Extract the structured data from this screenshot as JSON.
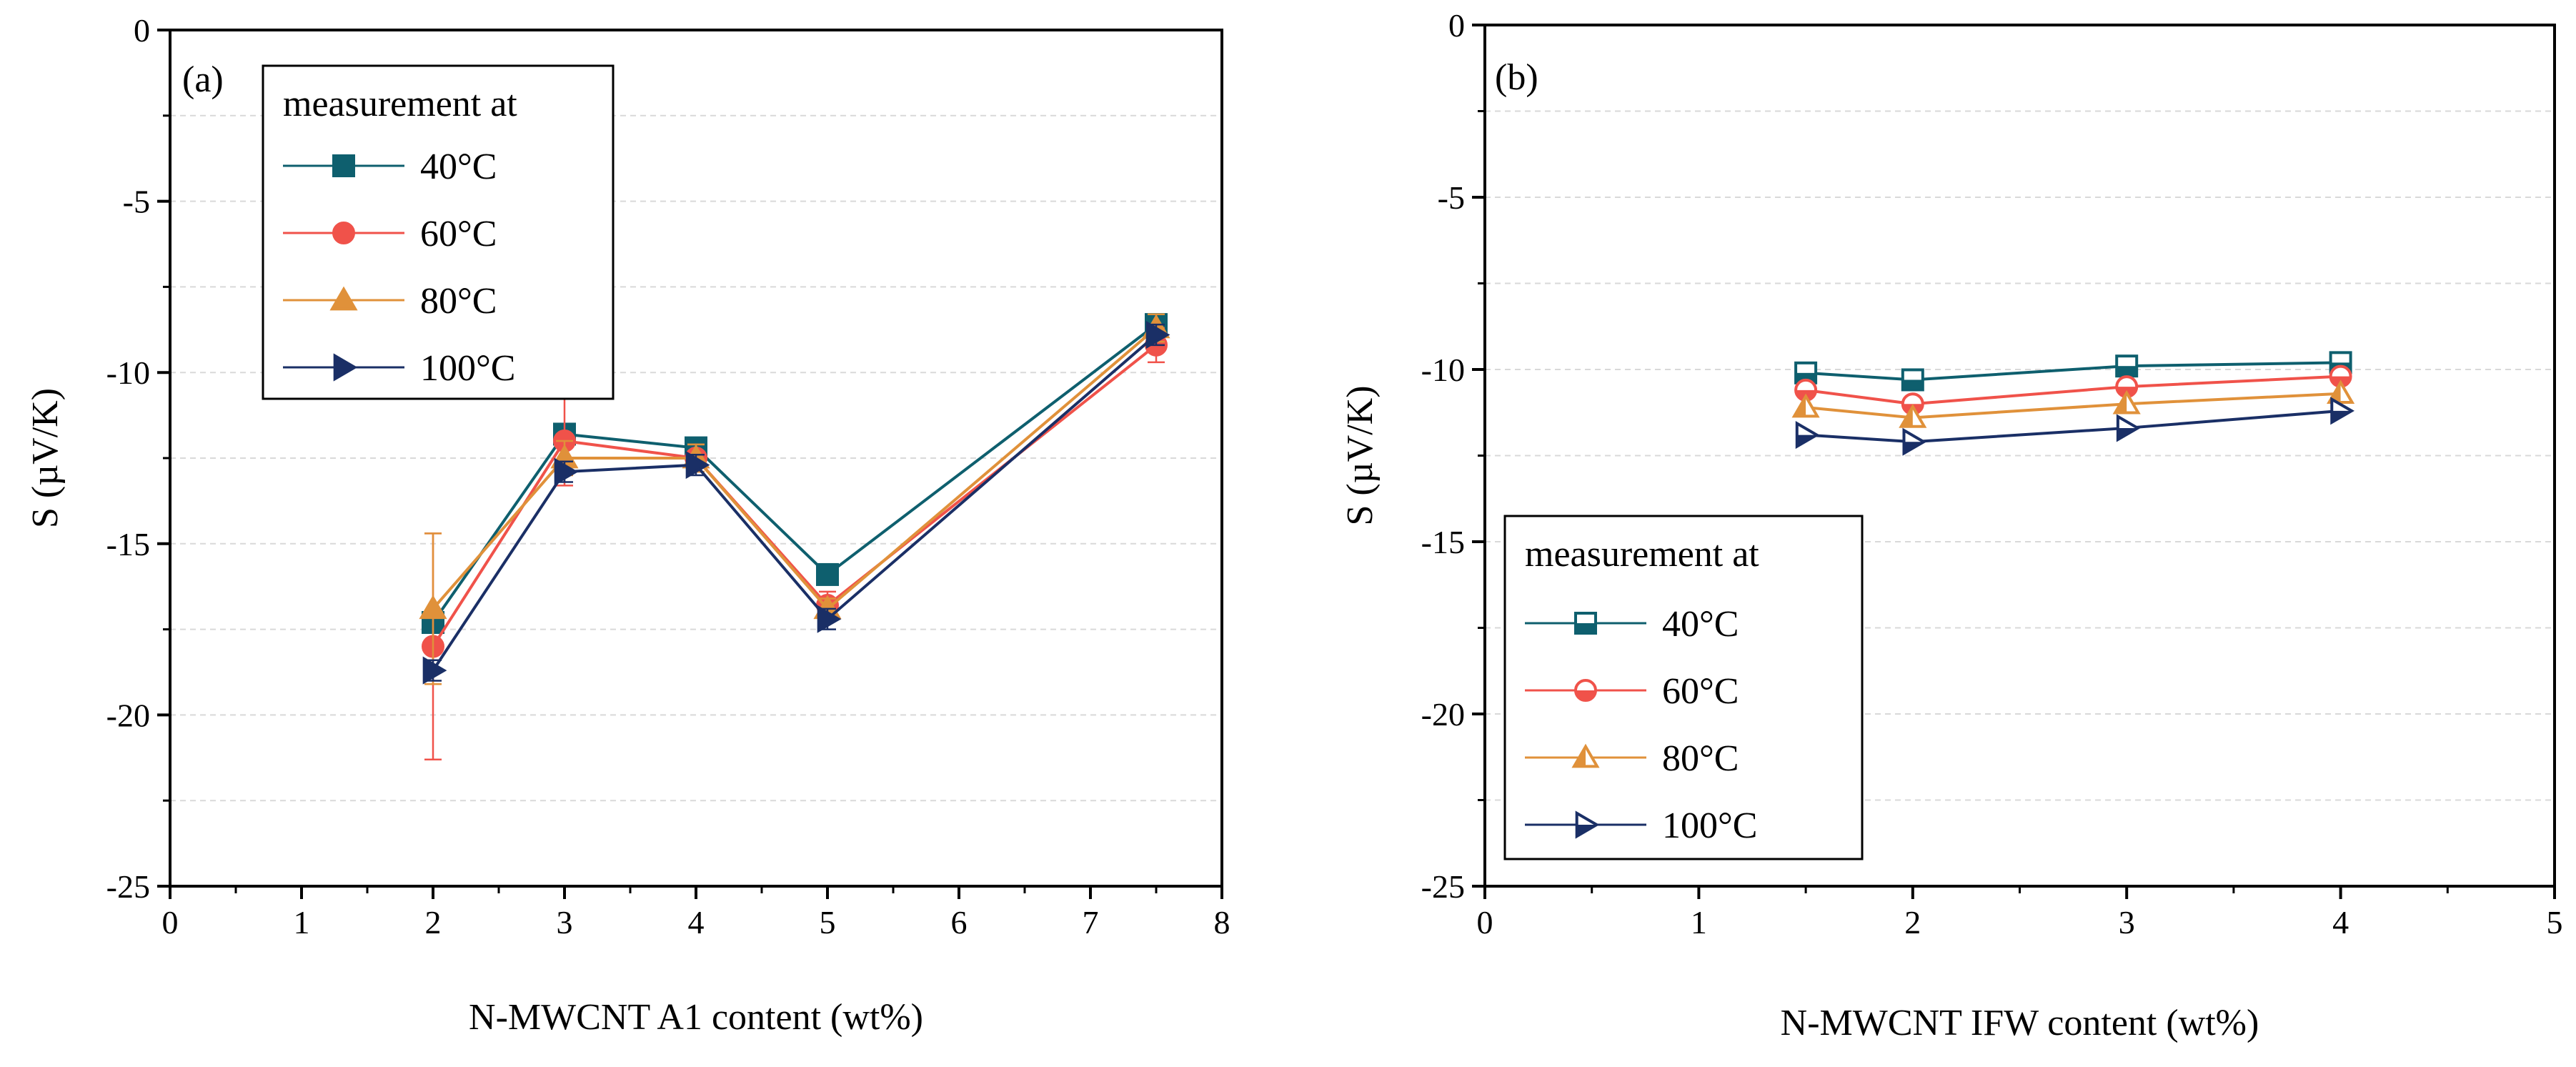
{
  "chart_data": [
    {
      "type": "line",
      "panel_label": "(a)",
      "xlabel": "N-MWCNT A1 content (wt%)",
      "ylabel": "S (µV/K)",
      "xlim": [
        0,
        8
      ],
      "ylim": [
        -25,
        0
      ],
      "xticks": [
        0,
        1,
        2,
        3,
        4,
        5,
        6,
        7,
        8
      ],
      "yticks": [
        0,
        -5,
        -10,
        -15,
        -20,
        -25
      ],
      "grid": "horizontal dashed",
      "legend": {
        "title": "measurement at",
        "placement": "top-left"
      },
      "series": [
        {
          "name": "40°C",
          "color": "#0e5f6e",
          "marker": "square",
          "filled": true,
          "x": [
            2,
            3,
            4,
            5,
            7.5
          ],
          "y": [
            -17.3,
            -11.8,
            -12.2,
            -15.9,
            -8.6
          ],
          "err": [
            0.3,
            0.3,
            0.3,
            0.2,
            0.3
          ]
        },
        {
          "name": "60°C",
          "color": "#f0524a",
          "marker": "circle",
          "filled": true,
          "x": [
            2,
            3,
            4,
            5,
            7.5
          ],
          "y": [
            -18.0,
            -12.0,
            -12.5,
            -16.8,
            -9.2
          ],
          "err": [
            3.3,
            1.3,
            0.4,
            0.4,
            0.5
          ]
        },
        {
          "name": "80°C",
          "color": "#e0913a",
          "marker": "triangle-up",
          "filled": true,
          "x": [
            2,
            3,
            4,
            5,
            7.5
          ],
          "y": [
            -16.9,
            -12.5,
            -12.5,
            -16.9,
            -8.7
          ],
          "err": [
            2.2,
            0.5,
            0.4,
            0.3,
            0.4
          ]
        },
        {
          "name": "100°C",
          "color": "#1a2f66",
          "marker": "triangle-right",
          "filled": true,
          "x": [
            2,
            3,
            4,
            5,
            7.5
          ],
          "y": [
            -18.7,
            -12.9,
            -12.7,
            -17.2,
            -8.9
          ],
          "err": [
            0.3,
            0.3,
            0.3,
            0.3,
            0.3
          ]
        }
      ]
    },
    {
      "type": "line",
      "panel_label": "(b)",
      "xlabel": "N-MWCNT IFW content (wt%)",
      "ylabel": "S (µV/K)",
      "xlim": [
        0,
        5
      ],
      "ylim": [
        -25,
        0
      ],
      "xticks": [
        0,
        1,
        2,
        3,
        4,
        5
      ],
      "yticks": [
        0,
        -5,
        -10,
        -15,
        -20,
        -25
      ],
      "grid": "horizontal dashed",
      "legend": {
        "title": "measurement at",
        "placement": "bottom-left"
      },
      "series": [
        {
          "name": "40°C",
          "color": "#0e5f6e",
          "marker": "square",
          "filled": false,
          "x": [
            1.5,
            2,
            3,
            4
          ],
          "y": [
            -10.1,
            -10.3,
            -9.9,
            -9.8
          ]
        },
        {
          "name": "60°C",
          "color": "#f0524a",
          "marker": "circle",
          "filled": false,
          "x": [
            1.5,
            2,
            3,
            4
          ],
          "y": [
            -10.6,
            -11.0,
            -10.5,
            -10.2
          ]
        },
        {
          "name": "80°C",
          "color": "#e0913a",
          "marker": "triangle-up",
          "filled": false,
          "x": [
            1.5,
            2,
            3,
            4
          ],
          "y": [
            -11.1,
            -11.4,
            -11.0,
            -10.7
          ]
        },
        {
          "name": "100°C",
          "color": "#1a2f66",
          "marker": "triangle-right",
          "filled": false,
          "x": [
            1.5,
            2,
            3,
            4
          ],
          "y": [
            -11.9,
            -12.1,
            -11.7,
            -11.2
          ]
        }
      ]
    }
  ]
}
